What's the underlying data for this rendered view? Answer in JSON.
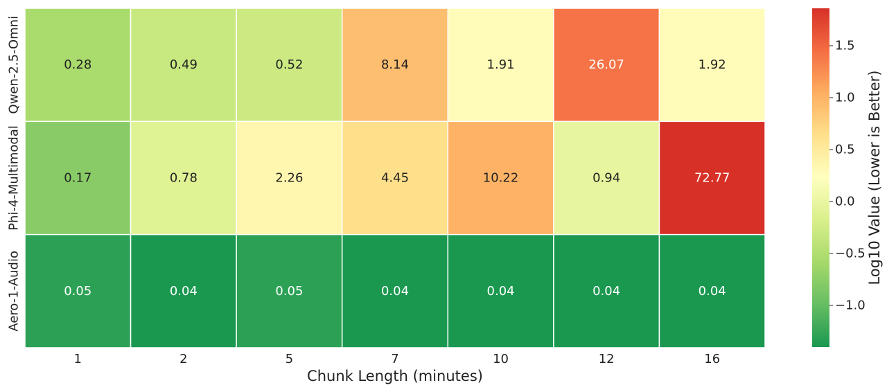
{
  "chart_data": {
    "type": "heatmap",
    "title": "",
    "xlabel": "Chunk Length (minutes)",
    "ylabel": "",
    "x_categories": [
      "1",
      "2",
      "5",
      "7",
      "10",
      "12",
      "16"
    ],
    "y_categories": [
      "Qwen-2.5-Omni",
      "Phi-4-Multimodal",
      "Aero-1-Audio"
    ],
    "values": [
      [
        0.28,
        0.49,
        0.52,
        8.14,
        1.91,
        26.07,
        1.92
      ],
      [
        0.17,
        0.78,
        2.26,
        4.45,
        10.22,
        0.94,
        72.77
      ],
      [
        0.05,
        0.04,
        0.05,
        0.04,
        0.04,
        0.04,
        0.04
      ]
    ],
    "value_labels": [
      [
        "0.28",
        "0.49",
        "0.52",
        "8.14",
        "1.91",
        "26.07",
        "1.92"
      ],
      [
        "0.17",
        "0.78",
        "2.26",
        "4.45",
        "10.22",
        "0.94",
        "72.77"
      ],
      [
        "0.05",
        "0.04",
        "0.05",
        "0.04",
        "0.04",
        "0.04",
        "0.04"
      ]
    ],
    "color_scale": {
      "label": "Log10 Value (Lower is Better)",
      "type": "log10",
      "domain": [
        -1.4,
        1.86
      ],
      "ticks": [
        1.5,
        1.0,
        0.5,
        0.0,
        -0.5,
        -1.0
      ],
      "tick_labels": [
        "1.5",
        "1.0",
        "0.5",
        "0.0",
        "−0.5",
        "−1.0"
      ],
      "colors": [
        "#1a9850",
        "#66bd63",
        "#a6d96a",
        "#d9ef8b",
        "#ffffbf",
        "#fee08b",
        "#fdae61",
        "#f46d43",
        "#d73027"
      ]
    },
    "grid": false,
    "legend": "colorbar-right"
  }
}
